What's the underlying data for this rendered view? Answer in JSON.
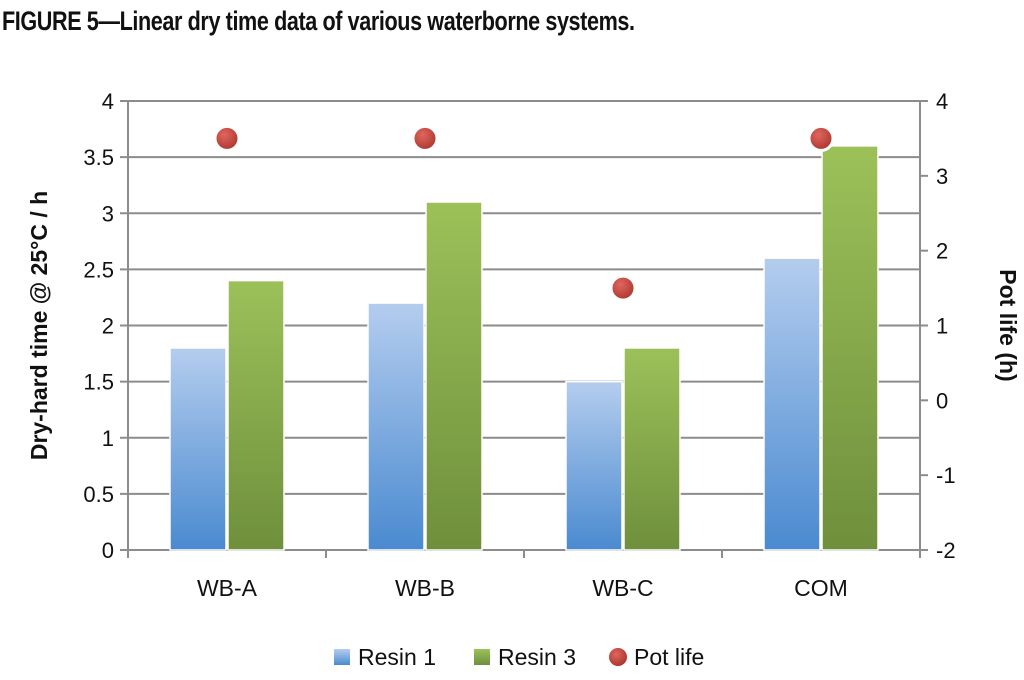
{
  "figure_title": "FIGURE 5—Linear dry time data of various waterborne systems.",
  "chart_data": {
    "type": "bar",
    "categories": [
      "WB-A",
      "WB-B",
      "WB-C",
      "COM"
    ],
    "series": [
      {
        "name": "Resin 1",
        "type": "bar",
        "axis": "left",
        "color": "#5b9bd5",
        "values": [
          1.8,
          2.2,
          1.5,
          2.6
        ]
      },
      {
        "name": "Resin 3",
        "type": "bar",
        "axis": "left",
        "color": "#8eb04e",
        "values": [
          2.4,
          3.1,
          1.8,
          3.6
        ]
      },
      {
        "name": "Pot life",
        "type": "scatter",
        "axis": "right",
        "color": "#c0504d",
        "values": [
          3.5,
          3.5,
          1.5,
          3.5
        ]
      }
    ],
    "ylabel": "Dry-hard time @ 25°C / h",
    "y2label": "Pot life (h)",
    "ylim": [
      0,
      4
    ],
    "y2lim": [
      -2,
      4
    ],
    "yticks": [
      "0",
      "0.5",
      "1",
      "1.5",
      "2",
      "2.5",
      "3",
      "3.5",
      "4"
    ],
    "y2ticks": [
      "-2",
      "-1",
      "0",
      "1",
      "2",
      "3",
      "4"
    ],
    "grid": true,
    "legend_position": "bottom"
  }
}
